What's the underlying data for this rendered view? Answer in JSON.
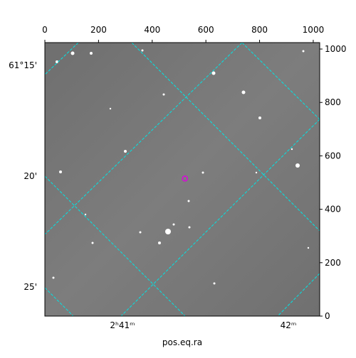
{
  "chart_data": {
    "type": "image",
    "xlabel": "pos.eq.ra",
    "xlim": [
      0,
      1024
    ],
    "ylim": [
      0,
      1024
    ],
    "xticks": [
      0,
      200,
      400,
      600,
      800,
      1000
    ],
    "yticks": [
      0,
      200,
      400,
      600,
      800,
      1000
    ],
    "ra_ticks": [
      "2ʰ41ᵐ",
      "42ᵐ"
    ],
    "dec_ticks": [
      "61°15'",
      "20'",
      "25'"
    ],
    "markers": {
      "x": [
        522
      ],
      "y": [
        515
      ],
      "color": "#e000e0"
    }
  }
}
